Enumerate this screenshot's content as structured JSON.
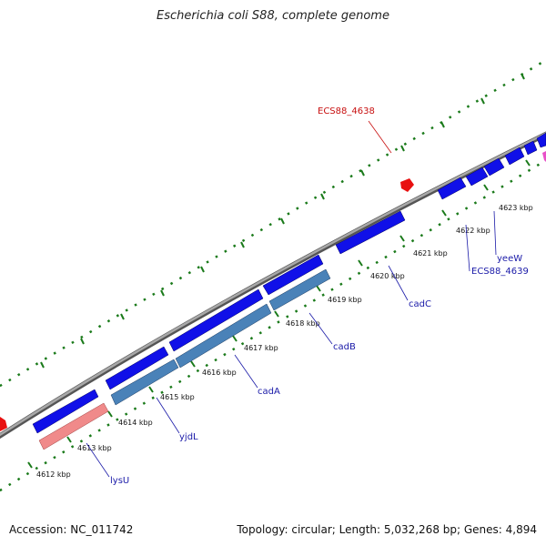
{
  "title": "Escherichia coli S88, complete genome",
  "footer": {
    "accession": "Accession: NC_011742",
    "summary": "Topology: circular; Length: 5,032,268 bp; Genes: 4,894"
  },
  "colors": {
    "backbone": "#8a8a8a",
    "forward_gene": "#1010e8",
    "reverse_gene": "#4a82b8",
    "rna_gene": "#f08a8a",
    "feature_red": "#e81010",
    "feature_pink": "#e850c8",
    "tick_green": "#1a7a1a",
    "label_blue": "#1a1aa8",
    "label_red": "#c81010"
  },
  "scale_ticks": [
    {
      "label": "4612 kbp"
    },
    {
      "label": "4613 kbp"
    },
    {
      "label": "4614 kbp"
    },
    {
      "label": "4615 kbp"
    },
    {
      "label": "4616 kbp"
    },
    {
      "label": "4617 kbp"
    },
    {
      "label": "4618 kbp"
    },
    {
      "label": "4619 kbp"
    },
    {
      "label": "4620 kbp"
    },
    {
      "label": "4621 kbp"
    },
    {
      "label": "4622 kbp"
    },
    {
      "label": "4623 kbp"
    }
  ],
  "gene_labels": [
    {
      "name": "ECS88_4638",
      "kind": "red"
    },
    {
      "name": "yeeW",
      "kind": "blue"
    },
    {
      "name": "ECS88_4639",
      "kind": "blue"
    },
    {
      "name": "cadC",
      "kind": "blue"
    },
    {
      "name": "cadB",
      "kind": "blue"
    },
    {
      "name": "cadA",
      "kind": "blue"
    },
    {
      "name": "yjdL",
      "kind": "blue"
    },
    {
      "name": "lysU",
      "kind": "blue"
    }
  ]
}
